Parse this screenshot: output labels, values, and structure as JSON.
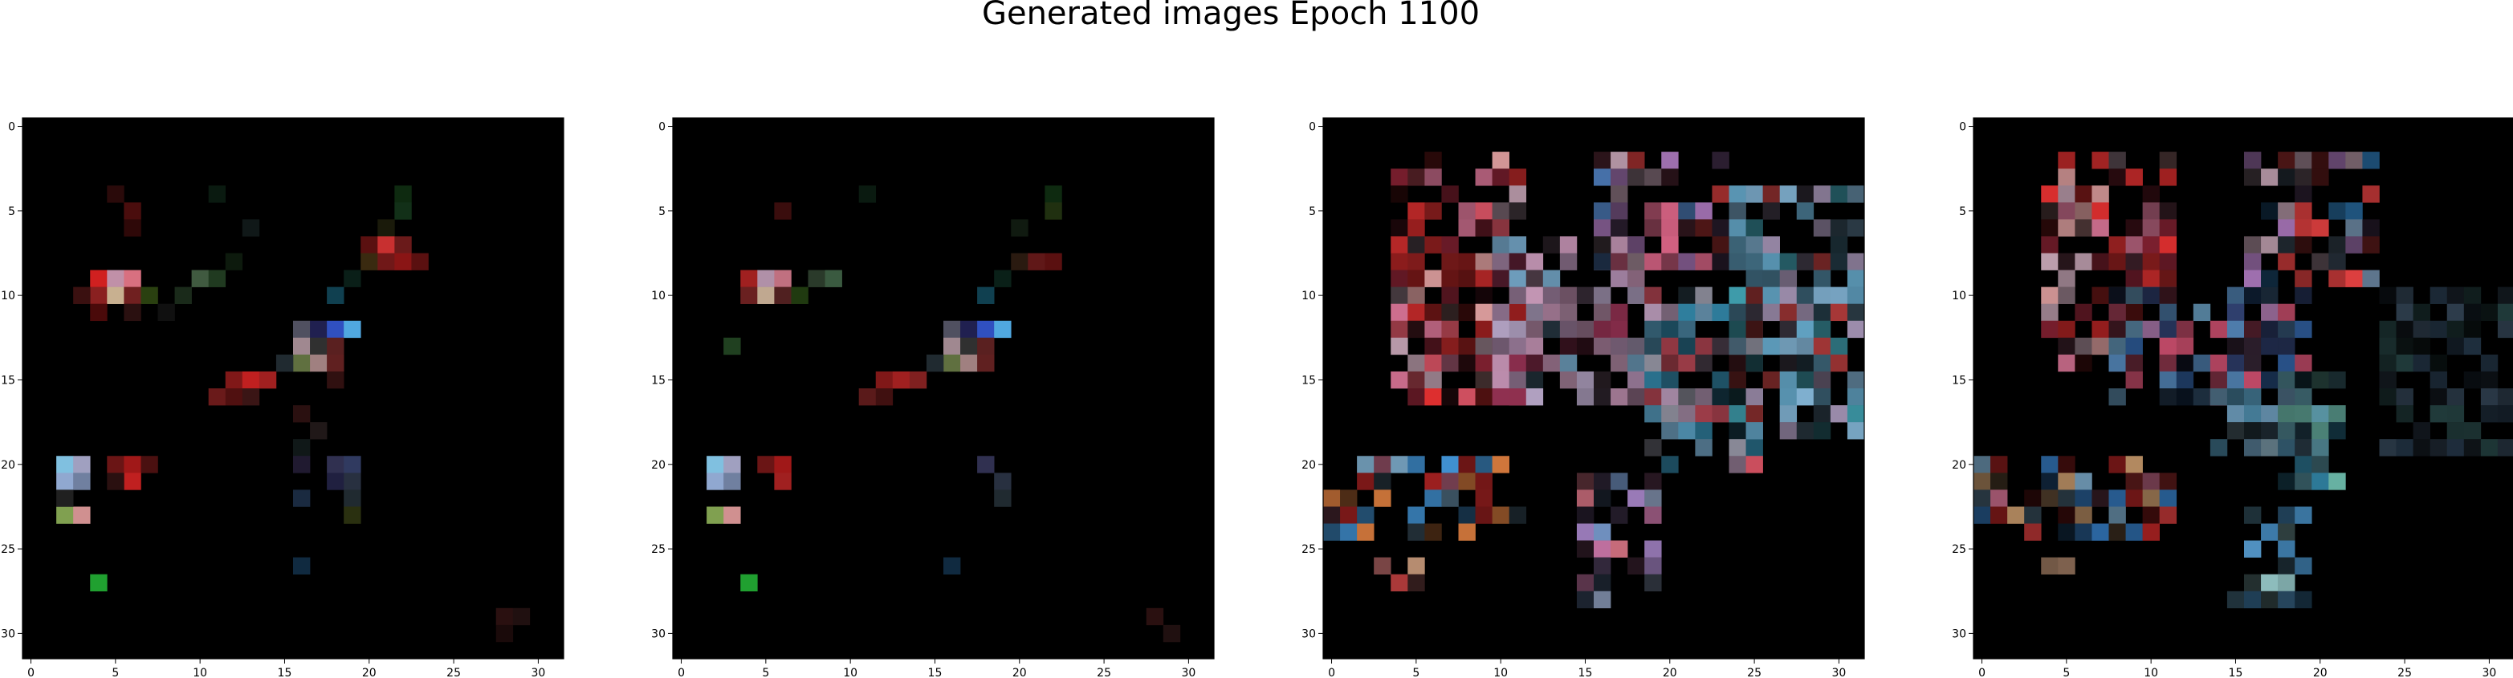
{
  "figure": {
    "title": "Generated images Epoch 1100"
  },
  "chart_data": [
    {
      "type": "heatmap",
      "title": "",
      "grid": "32x32 RGB pixels",
      "xlim": [
        -0.5,
        31.5
      ],
      "ylim": [
        31.5,
        -0.5
      ],
      "xticks": [
        "0",
        "5",
        "10",
        "15",
        "20",
        "25",
        "30"
      ],
      "yticks": [
        "0",
        "5",
        "10",
        "15",
        "20",
        "25",
        "30"
      ],
      "background": "#000000",
      "pixels": [
        {
          "x": 5,
          "y": 4,
          "c": "#2a0a0a"
        },
        {
          "x": 6,
          "y": 5,
          "c": "#4a0d0d"
        },
        {
          "x": 6,
          "y": 6,
          "c": "#2e0808"
        },
        {
          "x": 11,
          "y": 4,
          "c": "#0a1a10"
        },
        {
          "x": 13,
          "y": 6,
          "c": "#101818"
        },
        {
          "x": 12,
          "y": 8,
          "c": "#0d1a0d"
        },
        {
          "x": 22,
          "y": 4,
          "c": "#0e2a10"
        },
        {
          "x": 22,
          "y": 5,
          "c": "#123018"
        },
        {
          "x": 21,
          "y": 6,
          "c": "#1a1a0a"
        },
        {
          "x": 20,
          "y": 7,
          "c": "#5a1010"
        },
        {
          "x": 21,
          "y": 7,
          "c": "#c83030"
        },
        {
          "x": 22,
          "y": 7,
          "c": "#6a1a1a"
        },
        {
          "x": 20,
          "y": 8,
          "c": "#3a2a10"
        },
        {
          "x": 21,
          "y": 8,
          "c": "#701818"
        },
        {
          "x": 22,
          "y": 8,
          "c": "#8a1515"
        },
        {
          "x": 23,
          "y": 8,
          "c": "#5a1010"
        },
        {
          "x": 19,
          "y": 9,
          "c": "#0a1f18"
        },
        {
          "x": 4,
          "y": 9,
          "c": "#d02020"
        },
        {
          "x": 5,
          "y": 9,
          "c": "#c090a8"
        },
        {
          "x": 6,
          "y": 9,
          "c": "#d87080"
        },
        {
          "x": 4,
          "y": 10,
          "c": "#8a2020"
        },
        {
          "x": 5,
          "y": 10,
          "c": "#c8b090"
        },
        {
          "x": 6,
          "y": 10,
          "c": "#702020"
        },
        {
          "x": 7,
          "y": 10,
          "c": "#2a4010"
        },
        {
          "x": 3,
          "y": 10,
          "c": "#3a1010"
        },
        {
          "x": 9,
          "y": 10,
          "c": "#1a2a1a"
        },
        {
          "x": 10,
          "y": 9,
          "c": "#405a40"
        },
        {
          "x": 11,
          "y": 9,
          "c": "#203a20"
        },
        {
          "x": 18,
          "y": 10,
          "c": "#104050"
        },
        {
          "x": 4,
          "y": 11,
          "c": "#4a0a0a"
        },
        {
          "x": 6,
          "y": 11,
          "c": "#2a1010"
        },
        {
          "x": 8,
          "y": 11,
          "c": "#101010"
        },
        {
          "x": 16,
          "y": 12,
          "c": "#505060"
        },
        {
          "x": 17,
          "y": 12,
          "c": "#202050"
        },
        {
          "x": 18,
          "y": 12,
          "c": "#3050c0"
        },
        {
          "x": 19,
          "y": 12,
          "c": "#50a8e0"
        },
        {
          "x": 16,
          "y": 13,
          "c": "#a08890"
        },
        {
          "x": 17,
          "y": 13,
          "c": "#303030"
        },
        {
          "x": 18,
          "y": 13,
          "c": "#5a2020"
        },
        {
          "x": 16,
          "y": 14,
          "c": "#607040"
        },
        {
          "x": 17,
          "y": 14,
          "c": "#a08080"
        },
        {
          "x": 18,
          "y": 14,
          "c": "#602020"
        },
        {
          "x": 15,
          "y": 14,
          "c": "#202a30"
        },
        {
          "x": 18,
          "y": 15,
          "c": "#301010"
        },
        {
          "x": 12,
          "y": 15,
          "c": "#801818"
        },
        {
          "x": 13,
          "y": 15,
          "c": "#c02020"
        },
        {
          "x": 14,
          "y": 15,
          "c": "#a02020"
        },
        {
          "x": 11,
          "y": 16,
          "c": "#6a1a1a"
        },
        {
          "x": 12,
          "y": 16,
          "c": "#501010"
        },
        {
          "x": 13,
          "y": 16,
          "c": "#3a1515"
        },
        {
          "x": 16,
          "y": 17,
          "c": "#2a1010"
        },
        {
          "x": 17,
          "y": 18,
          "c": "#201818"
        },
        {
          "x": 16,
          "y": 19,
          "c": "#101818"
        },
        {
          "x": 2,
          "y": 20,
          "c": "#80c0e0"
        },
        {
          "x": 3,
          "y": 20,
          "c": "#a0a0c0"
        },
        {
          "x": 2,
          "y": 21,
          "c": "#90a8d0"
        },
        {
          "x": 3,
          "y": 21,
          "c": "#7080a0"
        },
        {
          "x": 5,
          "y": 20,
          "c": "#6a1515"
        },
        {
          "x": 6,
          "y": 20,
          "c": "#a01818"
        },
        {
          "x": 7,
          "y": 20,
          "c": "#4a1010"
        },
        {
          "x": 6,
          "y": 21,
          "c": "#c02020"
        },
        {
          "x": 5,
          "y": 21,
          "c": "#2a1010"
        },
        {
          "x": 2,
          "y": 23,
          "c": "#80a050"
        },
        {
          "x": 3,
          "y": 23,
          "c": "#d09090"
        },
        {
          "x": 2,
          "y": 22,
          "c": "#202020"
        },
        {
          "x": 16,
          "y": 20,
          "c": "#201a30"
        },
        {
          "x": 18,
          "y": 20,
          "c": "#303050"
        },
        {
          "x": 19,
          "y": 20,
          "c": "#303a60"
        },
        {
          "x": 18,
          "y": 21,
          "c": "#202040"
        },
        {
          "x": 19,
          "y": 21,
          "c": "#283040"
        },
        {
          "x": 16,
          "y": 22,
          "c": "#1a2a40"
        },
        {
          "x": 19,
          "y": 22,
          "c": "#202a30"
        },
        {
          "x": 19,
          "y": 23,
          "c": "#2a3010"
        },
        {
          "x": 16,
          "y": 26,
          "c": "#102a40"
        },
        {
          "x": 4,
          "y": 27,
          "c": "#20a030"
        },
        {
          "x": 28,
          "y": 29,
          "c": "#2a1010"
        },
        {
          "x": 29,
          "y": 29,
          "c": "#201010"
        },
        {
          "x": 28,
          "y": 30,
          "c": "#1a0a0a"
        }
      ]
    },
    {
      "type": "heatmap",
      "title": "",
      "grid": "32x32 RGB pixels",
      "xlim": [
        -0.5,
        31.5
      ],
      "ylim": [
        31.5,
        -0.5
      ],
      "xticks": [
        "0",
        "5",
        "10",
        "15",
        "20",
        "25",
        "30"
      ],
      "yticks": [
        "0",
        "5",
        "10",
        "15",
        "20",
        "25",
        "30"
      ],
      "background": "#000000",
      "pixels": [
        {
          "x": 6,
          "y": 5,
          "c": "#3a0d0d"
        },
        {
          "x": 11,
          "y": 4,
          "c": "#0a1a10"
        },
        {
          "x": 22,
          "y": 4,
          "c": "#0e2a10"
        },
        {
          "x": 22,
          "y": 5,
          "c": "#203010"
        },
        {
          "x": 20,
          "y": 6,
          "c": "#101a10"
        },
        {
          "x": 20,
          "y": 8,
          "c": "#2a1a10"
        },
        {
          "x": 21,
          "y": 8,
          "c": "#601818"
        },
        {
          "x": 22,
          "y": 8,
          "c": "#5a1010"
        },
        {
          "x": 19,
          "y": 9,
          "c": "#0a2018"
        },
        {
          "x": 4,
          "y": 9,
          "c": "#a02020"
        },
        {
          "x": 5,
          "y": 9,
          "c": "#b090a8"
        },
        {
          "x": 6,
          "y": 9,
          "c": "#c07080"
        },
        {
          "x": 4,
          "y": 10,
          "c": "#6a2020"
        },
        {
          "x": 5,
          "y": 10,
          "c": "#c0a890"
        },
        {
          "x": 6,
          "y": 10,
          "c": "#502020"
        },
        {
          "x": 7,
          "y": 10,
          "c": "#203a10"
        },
        {
          "x": 8,
          "y": 9,
          "c": "#2a3a2a"
        },
        {
          "x": 9,
          "y": 9,
          "c": "#3a5a40"
        },
        {
          "x": 18,
          "y": 10,
          "c": "#104050"
        },
        {
          "x": 16,
          "y": 12,
          "c": "#505060"
        },
        {
          "x": 17,
          "y": 12,
          "c": "#202050"
        },
        {
          "x": 18,
          "y": 12,
          "c": "#3050c0"
        },
        {
          "x": 19,
          "y": 12,
          "c": "#50a8e0"
        },
        {
          "x": 16,
          "y": 13,
          "c": "#a08890"
        },
        {
          "x": 17,
          "y": 13,
          "c": "#303030"
        },
        {
          "x": 18,
          "y": 13,
          "c": "#5a2020"
        },
        {
          "x": 16,
          "y": 14,
          "c": "#607040"
        },
        {
          "x": 17,
          "y": 14,
          "c": "#a08080"
        },
        {
          "x": 18,
          "y": 14,
          "c": "#602020"
        },
        {
          "x": 15,
          "y": 14,
          "c": "#202a30"
        },
        {
          "x": 3,
          "y": 13,
          "c": "#204020"
        },
        {
          "x": 12,
          "y": 15,
          "c": "#801818"
        },
        {
          "x": 13,
          "y": 15,
          "c": "#a02020"
        },
        {
          "x": 14,
          "y": 15,
          "c": "#802020"
        },
        {
          "x": 11,
          "y": 16,
          "c": "#5a1a1a"
        },
        {
          "x": 12,
          "y": 16,
          "c": "#401010"
        },
        {
          "x": 2,
          "y": 20,
          "c": "#80c0e0"
        },
        {
          "x": 3,
          "y": 20,
          "c": "#a0a0c0"
        },
        {
          "x": 2,
          "y": 21,
          "c": "#90a8d0"
        },
        {
          "x": 3,
          "y": 21,
          "c": "#7080a0"
        },
        {
          "x": 5,
          "y": 20,
          "c": "#6a1515"
        },
        {
          "x": 6,
          "y": 20,
          "c": "#a01818"
        },
        {
          "x": 6,
          "y": 21,
          "c": "#a02020"
        },
        {
          "x": 2,
          "y": 23,
          "c": "#80a050"
        },
        {
          "x": 3,
          "y": 23,
          "c": "#d09090"
        },
        {
          "x": 18,
          "y": 20,
          "c": "#303050"
        },
        {
          "x": 19,
          "y": 21,
          "c": "#283040"
        },
        {
          "x": 19,
          "y": 22,
          "c": "#202a30"
        },
        {
          "x": 16,
          "y": 26,
          "c": "#102a40"
        },
        {
          "x": 4,
          "y": 27,
          "c": "#20a030"
        },
        {
          "x": 28,
          "y": 29,
          "c": "#2a1010"
        },
        {
          "x": 29,
          "y": 30,
          "c": "#201010"
        }
      ]
    },
    {
      "type": "heatmap",
      "title": "",
      "grid": "32x32 RGB pixels",
      "xlim": [
        -0.5,
        31.5
      ],
      "ylim": [
        31.5,
        -0.5
      ],
      "xticks": [
        "0",
        "5",
        "10",
        "15",
        "20",
        "25",
        "30"
      ],
      "yticks": [
        "0",
        "5",
        "10",
        "15",
        "20",
        "25",
        "30"
      ],
      "background": "#000000",
      "blobs": [
        {
          "x0": 4,
          "x1": 11,
          "y0": 2,
          "y1": 16,
          "palette": [
            "#e03030",
            "#d07090",
            "#c0a0b0",
            "#a02020",
            "#e0a0a0",
            "#802030",
            "#d05060"
          ]
        },
        {
          "x0": 10,
          "x1": 18,
          "y0": 7,
          "y1": 16,
          "palette": [
            "#c090b0",
            "#b0a0c0",
            "#903050",
            "#d0a0c0",
            "#a080a0",
            "#70a0c0"
          ]
        },
        {
          "x0": 16,
          "x1": 24,
          "y0": 2,
          "y1": 8,
          "palette": [
            "#d06080",
            "#e04040",
            "#c0a0b0",
            "#5080c0",
            "#a070b0"
          ]
        },
        {
          "x0": 19,
          "x1": 25,
          "y0": 10,
          "y1": 20,
          "palette": [
            "#70a0c0",
            "#5090b0",
            "#a0a0b0",
            "#c0a0c0",
            "#3080a0",
            "#d05060"
          ]
        },
        {
          "x0": 24,
          "x1": 31,
          "y0": 4,
          "y1": 18,
          "palette": [
            "#80b0d0",
            "#60a0c0",
            "#a090b0",
            "#c04040",
            "#40a0b0"
          ]
        },
        {
          "x0": 0,
          "x1": 11,
          "y0": 20,
          "y1": 24,
          "palette": [
            "#4090d0",
            "#e04040",
            "#d07090",
            "#80b0d0",
            "#a02020",
            "#e08040"
          ]
        },
        {
          "x0": 15,
          "x1": 19,
          "y0": 21,
          "y1": 28,
          "palette": [
            "#a080c0",
            "#7090c0",
            "#c070a0",
            "#90a0c0",
            "#d07080"
          ]
        },
        {
          "x0": 3,
          "x1": 5,
          "y0": 26,
          "y1": 27,
          "palette": [
            "#e08080",
            "#d0a080",
            "#c04040"
          ]
        }
      ],
      "scatter_density": 0.55
    },
    {
      "type": "heatmap",
      "title": "",
      "grid": "32x32 RGB pixels",
      "xlim": [
        -0.5,
        31.5
      ],
      "ylim": [
        31.5,
        -0.5
      ],
      "xticks": [
        "0",
        "5",
        "10",
        "15",
        "20",
        "25",
        "30"
      ],
      "yticks": [
        "0",
        "5",
        "10",
        "15",
        "20",
        "25",
        "30"
      ],
      "background": "#000000",
      "blobs": [
        {
          "x0": 4,
          "x1": 11,
          "y0": 2,
          "y1": 14,
          "palette": [
            "#e03030",
            "#d07090",
            "#c0a0b0",
            "#a02020",
            "#e0a0a0",
            "#802030"
          ]
        },
        {
          "x0": 8,
          "x1": 19,
          "y0": 10,
          "y1": 16,
          "palette": [
            "#5080b0",
            "#3060a0",
            "#a070a0",
            "#6090b0",
            "#304070",
            "#d05070"
          ]
        },
        {
          "x0": 16,
          "x1": 23,
          "y0": 2,
          "y1": 9,
          "palette": [
            "#3080c0",
            "#80a0c0",
            "#c0a0b0",
            "#e04040",
            "#a070b0"
          ]
        },
        {
          "x0": 14,
          "x1": 19,
          "y0": 16,
          "y1": 19,
          "palette": [
            "#70a0c0",
            "#5090b0",
            "#80a0b0"
          ]
        },
        {
          "x0": 18,
          "x1": 21,
          "y0": 15,
          "y1": 21,
          "palette": [
            "#3080a0",
            "#60a0b0",
            "#70c0b0"
          ]
        },
        {
          "x0": 0,
          "x1": 11,
          "y0": 20,
          "y1": 24,
          "palette": [
            "#3070b0",
            "#e04040",
            "#d07090",
            "#a02020",
            "#80b0d0",
            "#d0a070"
          ]
        },
        {
          "x0": 15,
          "x1": 19,
          "y0": 23,
          "y1": 28,
          "palette": [
            "#5090c0",
            "#70b0d0",
            "#4080b0",
            "#90c0c0"
          ]
        },
        {
          "x0": 4,
          "x1": 5,
          "y0": 26,
          "y1": 27,
          "palette": [
            "#e08080",
            "#d0a080"
          ]
        },
        {
          "x0": 24,
          "x1": 31,
          "y0": 10,
          "y1": 19,
          "palette": [
            "#203040",
            "#304050",
            "#203a3a"
          ]
        }
      ],
      "scatter_density": 0.45
    }
  ]
}
